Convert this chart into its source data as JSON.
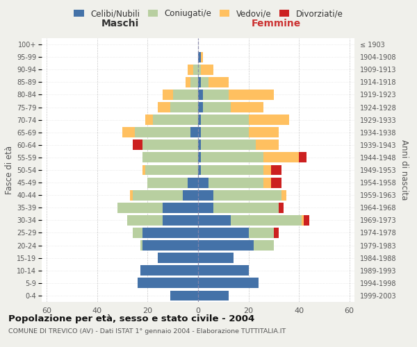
{
  "age_groups": [
    "0-4",
    "5-9",
    "10-14",
    "15-19",
    "20-24",
    "25-29",
    "30-34",
    "35-39",
    "40-44",
    "45-49",
    "50-54",
    "55-59",
    "60-64",
    "65-69",
    "70-74",
    "75-79",
    "80-84",
    "85-89",
    "90-94",
    "95-99",
    "100+"
  ],
  "birth_years": [
    "1999-2003",
    "1994-1998",
    "1989-1993",
    "1984-1988",
    "1979-1983",
    "1974-1978",
    "1969-1973",
    "1964-1968",
    "1959-1963",
    "1954-1958",
    "1949-1953",
    "1944-1948",
    "1939-1943",
    "1934-1938",
    "1929-1933",
    "1924-1928",
    "1919-1923",
    "1914-1918",
    "1909-1913",
    "1904-1908",
    "≤ 1903"
  ],
  "male": {
    "celibi": [
      11,
      24,
      23,
      16,
      22,
      22,
      14,
      14,
      6,
      4,
      0,
      0,
      0,
      3,
      0,
      0,
      0,
      0,
      0,
      0,
      0
    ],
    "coniugati": [
      0,
      0,
      0,
      0,
      1,
      4,
      14,
      18,
      20,
      16,
      21,
      22,
      22,
      22,
      18,
      11,
      10,
      3,
      2,
      0,
      0
    ],
    "vedovi": [
      0,
      0,
      0,
      0,
      0,
      0,
      0,
      0,
      1,
      0,
      1,
      0,
      0,
      5,
      3,
      5,
      4,
      2,
      2,
      0,
      0
    ],
    "divorziati": [
      0,
      0,
      0,
      0,
      0,
      0,
      0,
      0,
      0,
      0,
      0,
      0,
      4,
      0,
      0,
      0,
      0,
      0,
      0,
      0,
      0
    ]
  },
  "female": {
    "nubili": [
      12,
      24,
      20,
      14,
      22,
      20,
      13,
      6,
      6,
      4,
      1,
      1,
      1,
      1,
      1,
      2,
      2,
      1,
      0,
      1,
      0
    ],
    "coniugate": [
      0,
      0,
      0,
      0,
      8,
      10,
      28,
      26,
      27,
      22,
      25,
      25,
      22,
      19,
      19,
      11,
      10,
      3,
      1,
      0,
      0
    ],
    "vedove": [
      0,
      0,
      0,
      0,
      0,
      0,
      1,
      0,
      2,
      3,
      3,
      14,
      9,
      12,
      16,
      13,
      18,
      8,
      5,
      1,
      0
    ],
    "divorziate": [
      0,
      0,
      0,
      0,
      0,
      2,
      2,
      2,
      0,
      4,
      4,
      3,
      0,
      0,
      0,
      0,
      0,
      0,
      0,
      0,
      0
    ]
  },
  "colors": {
    "celibi": "#4472a8",
    "coniugati": "#b8cfa0",
    "vedovi": "#ffc060",
    "divorziati": "#cc2020"
  },
  "xlim": 62,
  "title": "Popolazione per età, sesso e stato civile - 2004",
  "subtitle": "COMUNE DI TREVICO (AV) - Dati ISTAT 1° gennaio 2004 - Elaborazione TUTTITALIA.IT",
  "ylabel_left": "Fasce di età",
  "ylabel_right": "Anni di nascita",
  "xlabel_left": "Maschi",
  "xlabel_right": "Femmine",
  "legend_labels": [
    "Celibi/Nubili",
    "Coniugati/e",
    "Vedovi/e",
    "Divorziati/e"
  ],
  "bg_color": "#f0f0eb",
  "plot_bg": "#ffffff"
}
